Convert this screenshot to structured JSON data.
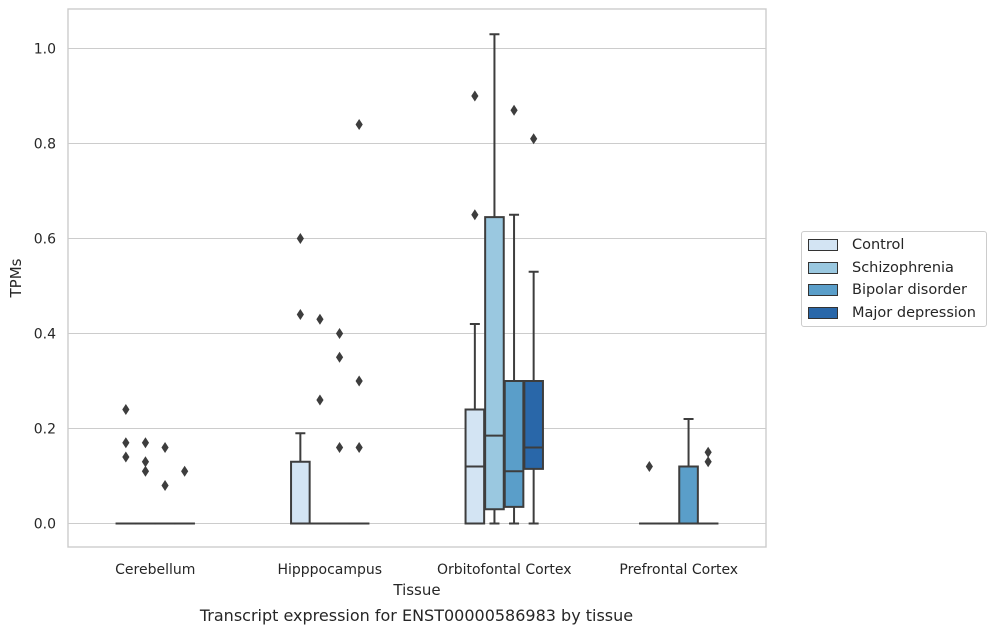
{
  "chart_data": {
    "type": "box",
    "caption": "Transcript expression for ENST00000586983 by tissue",
    "xlabel": "Tissue",
    "ylabel": "TPMs",
    "ylim": [
      -0.05,
      1.08
    ],
    "yticks": [
      "0.0",
      "0.2",
      "0.4",
      "0.6",
      "0.8",
      "1.0"
    ],
    "categories": [
      "Cerebellum",
      "Hipppocampus",
      "Orbitofontal Cortex",
      "Prefrontal Cortex"
    ],
    "grid": "horizontal",
    "legend_position": "right",
    "series": [
      {
        "name": "Control",
        "color": "#d3e4f3",
        "boxes": [
          {
            "category": "Cerebellum",
            "q1": 0,
            "median": 0,
            "q3": 0,
            "whisker_low": 0,
            "whisker_high": 0,
            "outliers": [
              0.24,
              0.17,
              0.14
            ]
          },
          {
            "category": "Hipppocampus",
            "q1": 0,
            "median": 0,
            "q3": 0.13,
            "whisker_low": 0,
            "whisker_high": 0.19,
            "outliers": [
              0.6,
              0.44
            ]
          },
          {
            "category": "Orbitofontal Cortex",
            "q1": 0,
            "median": 0.12,
            "q3": 0.24,
            "whisker_low": 0,
            "whisker_high": 0.42,
            "outliers": [
              0.9,
              0.65
            ]
          },
          {
            "category": "Prefrontal Cortex",
            "q1": 0,
            "median": 0,
            "q3": 0,
            "whisker_low": 0,
            "whisker_high": 0,
            "outliers": [
              0.12
            ]
          }
        ]
      },
      {
        "name": "Schizophrenia",
        "color": "#9ac8e0",
        "boxes": [
          {
            "category": "Cerebellum",
            "q1": 0,
            "median": 0,
            "q3": 0,
            "whisker_low": 0,
            "whisker_high": 0,
            "outliers": [
              0.17,
              0.13,
              0.11
            ]
          },
          {
            "category": "Hipppocampus",
            "q1": 0,
            "median": 0,
            "q3": 0,
            "whisker_low": 0,
            "whisker_high": 0,
            "outliers": [
              0.43,
              0.26
            ]
          },
          {
            "category": "Orbitofontal Cortex",
            "q1": 0.03,
            "median": 0.185,
            "q3": 0.645,
            "whisker_low": 0,
            "whisker_high": 1.03,
            "outliers": []
          },
          {
            "category": "Prefrontal Cortex",
            "q1": 0,
            "median": 0,
            "q3": 0,
            "whisker_low": 0,
            "whisker_high": 0,
            "outliers": []
          }
        ]
      },
      {
        "name": "Bipolar disorder",
        "color": "#5a9ec9",
        "boxes": [
          {
            "category": "Cerebellum",
            "q1": 0,
            "median": 0,
            "q3": 0,
            "whisker_low": 0,
            "whisker_high": 0,
            "outliers": [
              0.16,
              0.08
            ]
          },
          {
            "category": "Hipppocampus",
            "q1": 0,
            "median": 0,
            "q3": 0,
            "whisker_low": 0,
            "whisker_high": 0,
            "outliers": [
              0.4,
              0.35,
              0.16
            ]
          },
          {
            "category": "Orbitofontal Cortex",
            "q1": 0.035,
            "median": 0.11,
            "q3": 0.3,
            "whisker_low": 0,
            "whisker_high": 0.65,
            "outliers": [
              0.87
            ]
          },
          {
            "category": "Prefrontal Cortex",
            "q1": 0,
            "median": 0,
            "q3": 0.12,
            "whisker_low": 0,
            "whisker_high": 0.22,
            "outliers": []
          }
        ]
      },
      {
        "name": "Major depression",
        "color": "#2967a9",
        "boxes": [
          {
            "category": "Cerebellum",
            "q1": 0,
            "median": 0,
            "q3": 0,
            "whisker_low": 0,
            "whisker_high": 0,
            "outliers": [
              0.11
            ]
          },
          {
            "category": "Hipppocampus",
            "q1": 0,
            "median": 0,
            "q3": 0,
            "whisker_low": 0,
            "whisker_high": 0,
            "outliers": [
              0.84,
              0.3,
              0.16
            ]
          },
          {
            "category": "Orbitofontal Cortex",
            "q1": 0.115,
            "median": 0.16,
            "q3": 0.3,
            "whisker_low": 0,
            "whisker_high": 0.53,
            "outliers": [
              0.81
            ]
          },
          {
            "category": "Prefrontal Cortex",
            "q1": 0,
            "median": 0,
            "q3": 0,
            "whisker_low": 0,
            "whisker_high": 0,
            "outliers": [
              0.15,
              0.13
            ]
          }
        ]
      }
    ]
  }
}
